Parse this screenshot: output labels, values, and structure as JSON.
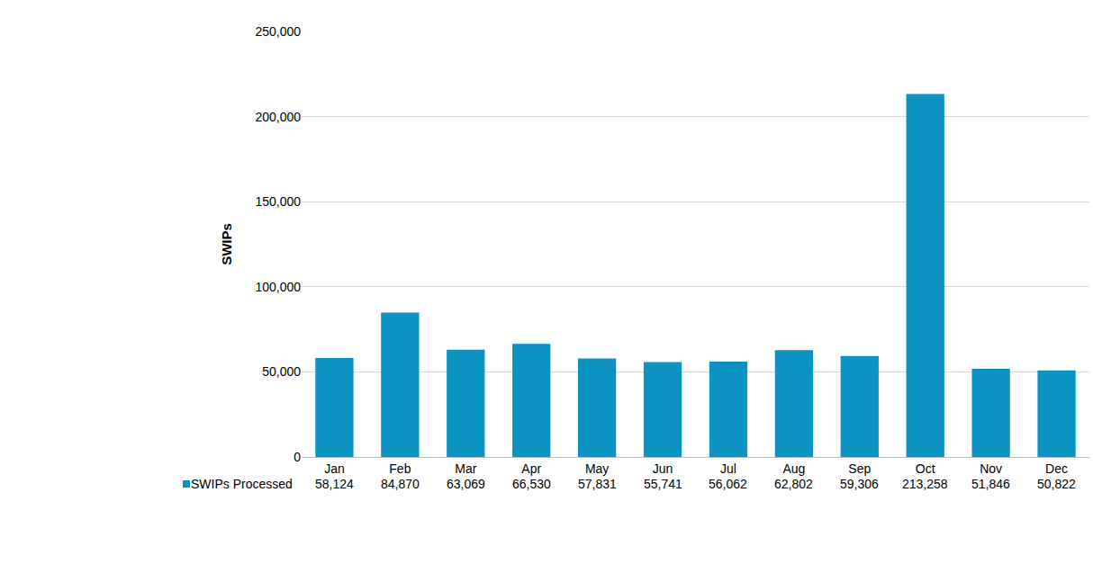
{
  "chart_data": {
    "type": "bar",
    "y_label": "SWIPs",
    "categories": [
      "Jan",
      "Feb",
      "Mar",
      "Apr",
      "May",
      "Jun",
      "Jul",
      "Aug",
      "Sep",
      "Oct",
      "Nov",
      "Dec"
    ],
    "series": [
      {
        "name": "SWIPs Processed",
        "color": "#0b93c1",
        "values": [
          58124,
          84870,
          63069,
          66530,
          57831,
          55741,
          56062,
          62802,
          59306,
          213258,
          51846,
          50822
        ],
        "value_labels": [
          "58,124",
          "84,870",
          "63,069",
          "66,530",
          "57,831",
          "55,741",
          "56,062",
          "62,802",
          "59,306",
          "213,258",
          "51,846",
          "50,822"
        ]
      }
    ],
    "ylim": [
      0,
      250000
    ],
    "yticks": [
      0,
      {
        "value": 50000,
        "label": "50,000"
      },
      {
        "value": 100000,
        "label": "100,000"
      },
      {
        "value": 150000,
        "label": "150,000"
      },
      {
        "value": 200000,
        "label": "200,000"
      },
      {
        "value": 250000,
        "label": "250,000"
      }
    ],
    "grid": true
  }
}
